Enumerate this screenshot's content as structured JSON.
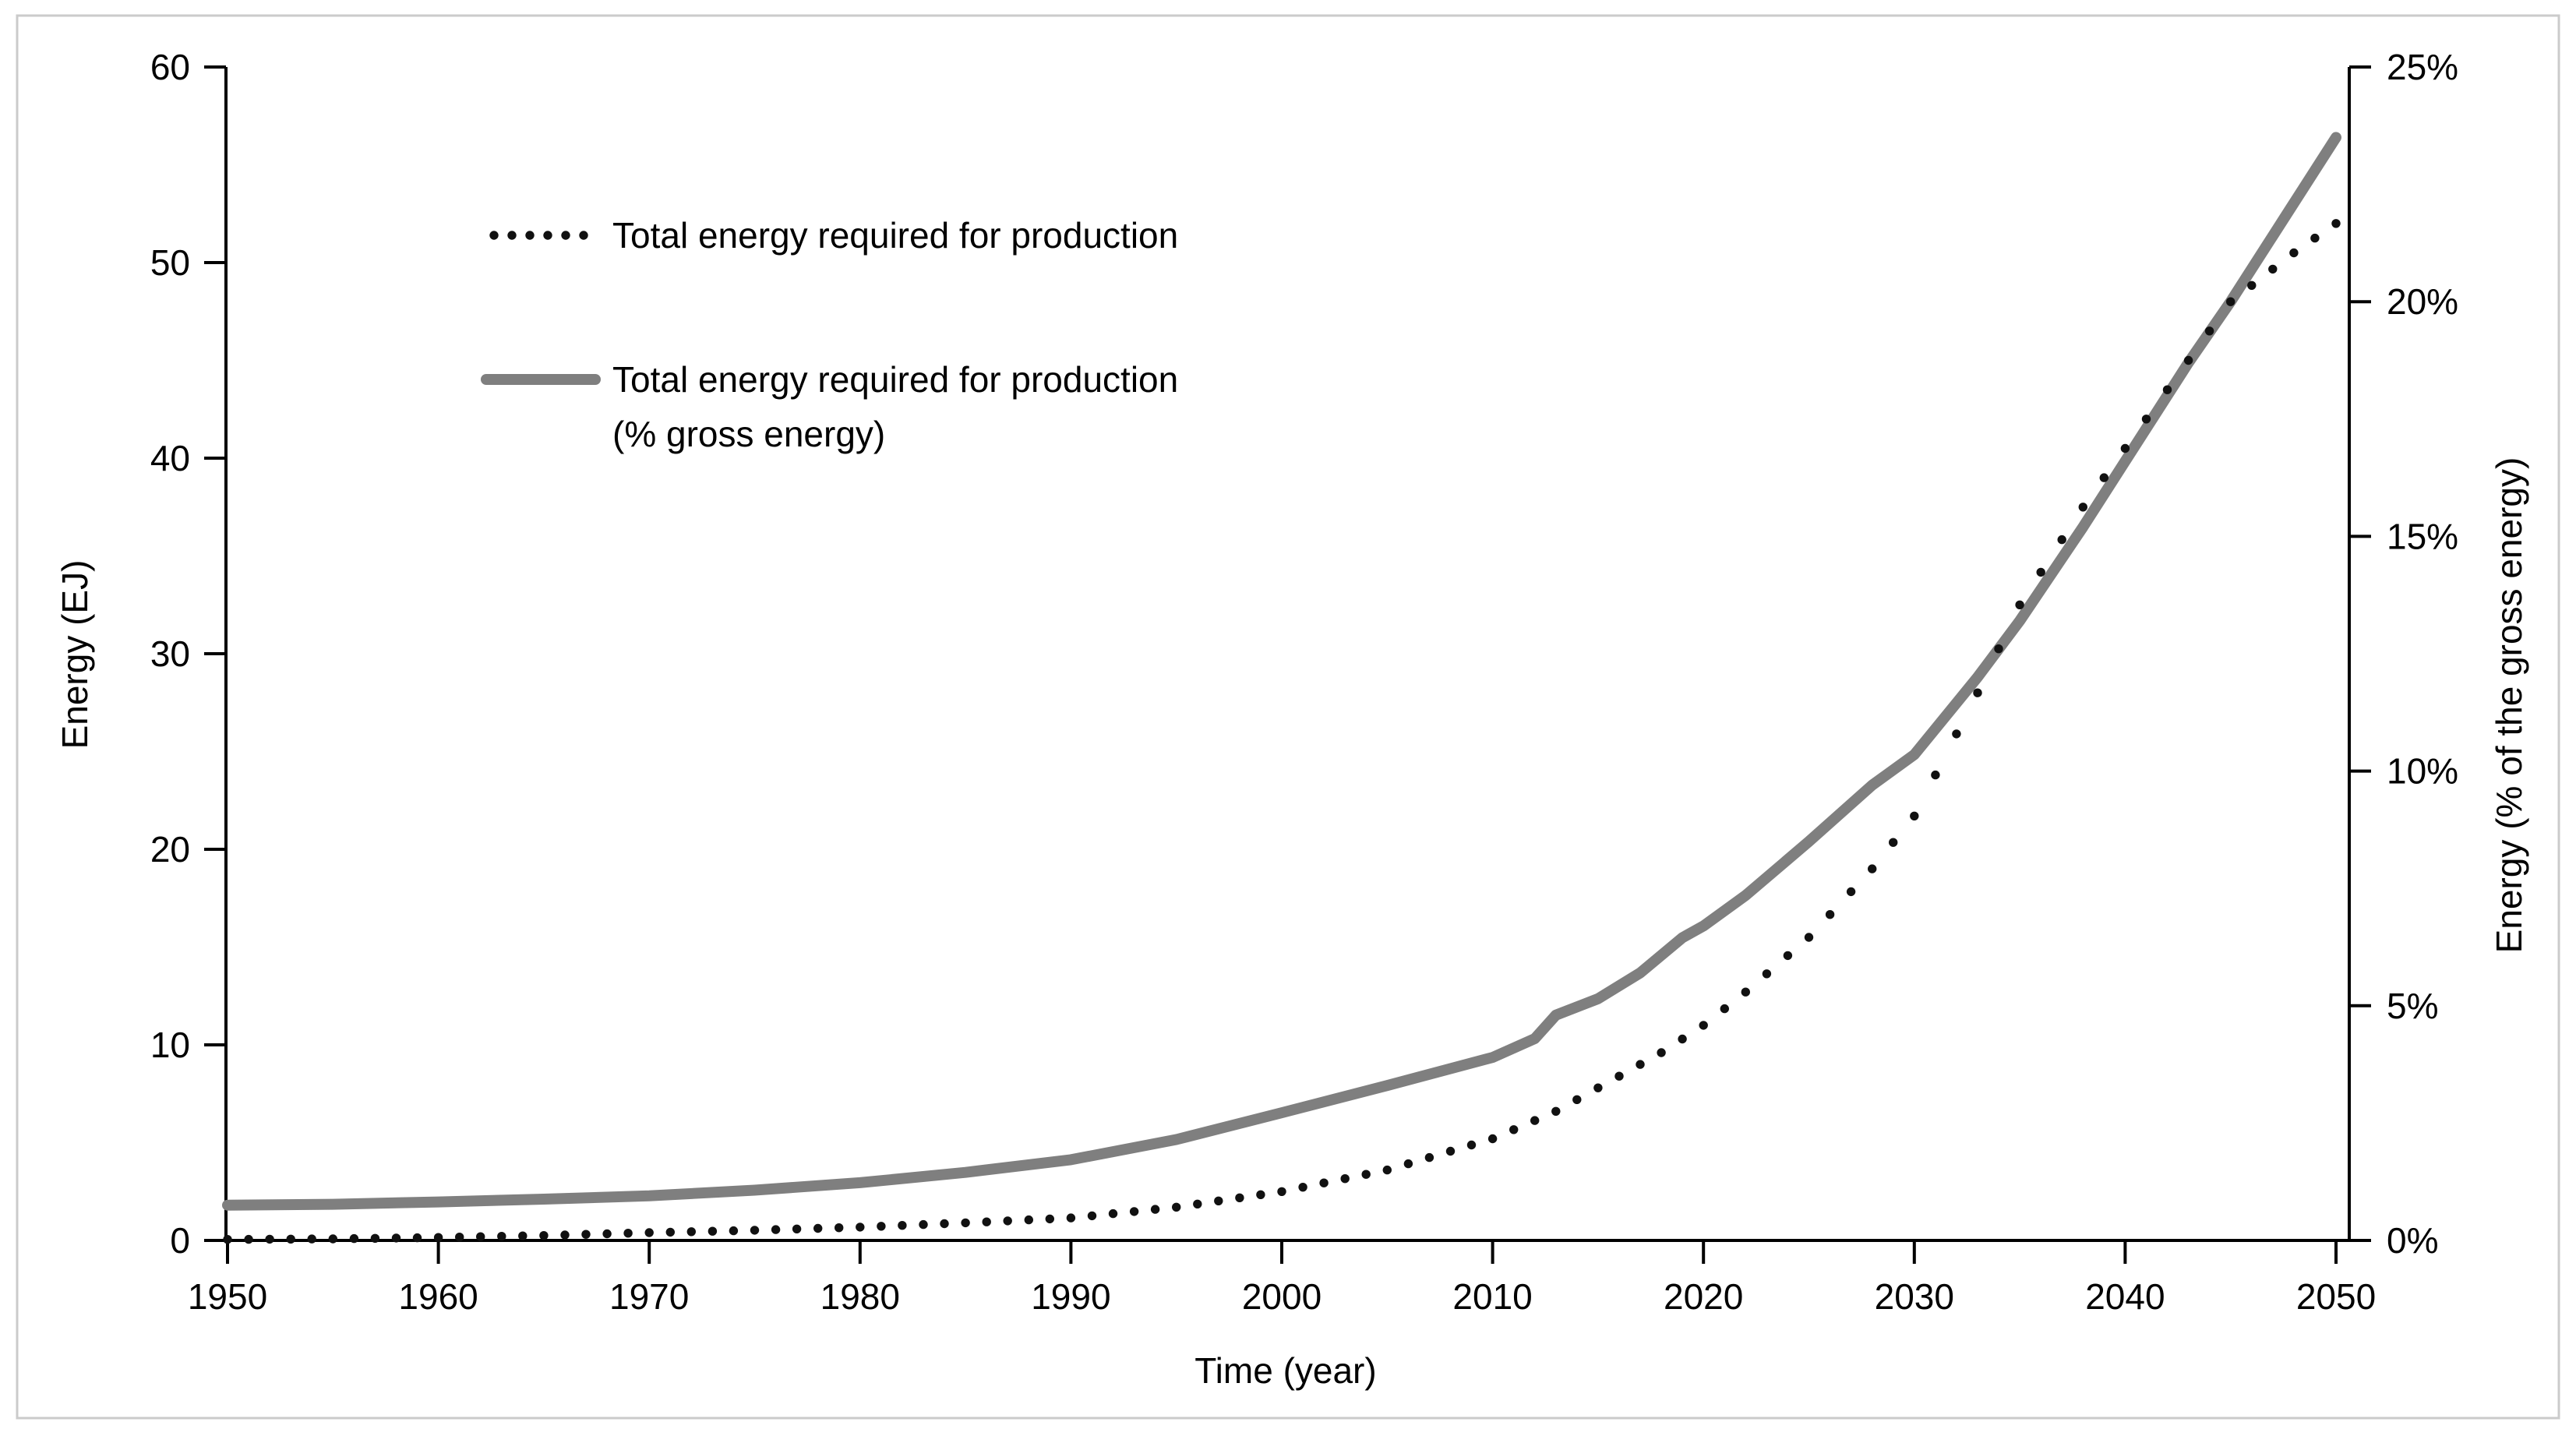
{
  "chart_data": {
    "type": "line",
    "title": "",
    "xlabel": "Time (year)",
    "ylabel_left": "Energy (EJ)",
    "ylabel_right": "Energy (% of the gross energy)",
    "x_ticks": [
      "1950",
      "1960",
      "1970",
      "1980",
      "1990",
      "2000",
      "2010",
      "2020",
      "2030",
      "2040",
      "2050"
    ],
    "x_range": [
      1950,
      2050
    ],
    "y_left_axis": {
      "min": 0,
      "max": 60,
      "step": 10,
      "tick_labels": [
        "0",
        "10",
        "20",
        "30",
        "40",
        "50",
        "60"
      ]
    },
    "y_right_axis": {
      "min": 0,
      "max": 25,
      "step": 5,
      "tick_labels": [
        "0%",
        "5%",
        "10%",
        "15%",
        "20%",
        "25%"
      ]
    },
    "grid": "off",
    "legend_position": "inside-top-left",
    "legend": [
      {
        "label": "Total energy required for production",
        "style": "dotted",
        "color": "#111111",
        "axis": "left"
      },
      {
        "label": "Total energy required for production (% gross energy)",
        "label_line1": "Total energy required for production",
        "label_line2": "(% gross energy)",
        "style": "solid",
        "color": "#7f7f7f",
        "axis": "right"
      }
    ],
    "series": [
      {
        "name": "Total energy required for production",
        "axis": "left",
        "unit": "EJ",
        "marker": "dot",
        "points": [
          [
            1950,
            0.05
          ],
          [
            1955,
            0.08
          ],
          [
            1960,
            0.15
          ],
          [
            1965,
            0.25
          ],
          [
            1970,
            0.4
          ],
          [
            1975,
            0.52
          ],
          [
            1980,
            0.68
          ],
          [
            1985,
            0.9
          ],
          [
            1990,
            1.15
          ],
          [
            1995,
            1.7
          ],
          [
            2000,
            2.5
          ],
          [
            2005,
            3.6
          ],
          [
            2010,
            5.2
          ],
          [
            2013,
            6.6
          ],
          [
            2015,
            7.8
          ],
          [
            2018,
            9.6
          ],
          [
            2020,
            11.0
          ],
          [
            2022,
            12.7
          ],
          [
            2025,
            15.5
          ],
          [
            2028,
            19.0
          ],
          [
            2030,
            21.7
          ],
          [
            2033,
            28.0
          ],
          [
            2035,
            32.5
          ],
          [
            2038,
            37.5
          ],
          [
            2040,
            40.5
          ],
          [
            2043,
            45.0
          ],
          [
            2045,
            48.0
          ],
          [
            2048,
            50.5
          ],
          [
            2050,
            52.0
          ]
        ]
      },
      {
        "name": "Total energy required for production (% gross energy)",
        "axis": "right",
        "unit": "%",
        "marker": "none",
        "points": [
          [
            1950,
            0.75
          ],
          [
            1955,
            0.77
          ],
          [
            1960,
            0.82
          ],
          [
            1965,
            0.88
          ],
          [
            1970,
            0.95
          ],
          [
            1975,
            1.07
          ],
          [
            1980,
            1.23
          ],
          [
            1985,
            1.45
          ],
          [
            1990,
            1.72
          ],
          [
            1995,
            2.15
          ],
          [
            2000,
            2.72
          ],
          [
            2005,
            3.3
          ],
          [
            2010,
            3.9
          ],
          [
            2012,
            4.3
          ],
          [
            2013,
            4.8
          ],
          [
            2015,
            5.15
          ],
          [
            2017,
            5.7
          ],
          [
            2019,
            6.45
          ],
          [
            2020,
            6.7
          ],
          [
            2022,
            7.35
          ],
          [
            2025,
            8.5
          ],
          [
            2028,
            9.7
          ],
          [
            2030,
            10.35
          ],
          [
            2033,
            12.0
          ],
          [
            2035,
            13.2
          ],
          [
            2038,
            15.2
          ],
          [
            2040,
            16.6
          ],
          [
            2043,
            18.7
          ],
          [
            2045,
            20.0
          ],
          [
            2048,
            22.1
          ],
          [
            2050,
            23.5
          ]
        ]
      }
    ]
  },
  "colors": {
    "background": "#ffffff",
    "frame_border": "#cbcbcb",
    "axis": "#000000",
    "series_dotted": "#111111",
    "series_gray": "#7f7f7f"
  }
}
